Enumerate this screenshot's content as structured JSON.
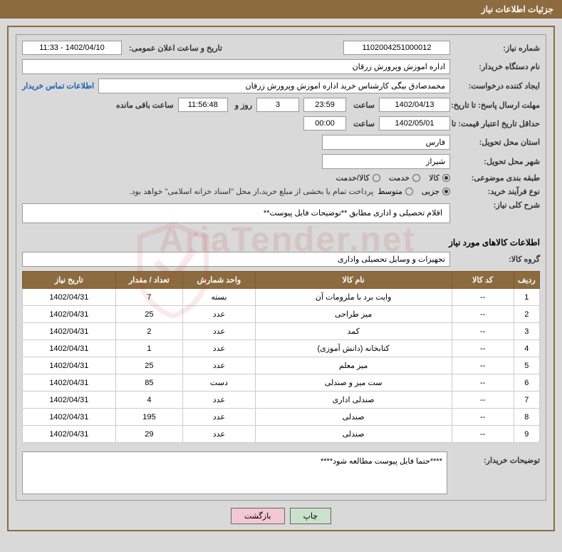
{
  "header": {
    "title": "جزئیات اطلاعات نیاز"
  },
  "fields": {
    "need_no_label": "شماره نیاز:",
    "need_no": "1102004251000012",
    "announce_label": "تاریخ و ساعت اعلان عمومی:",
    "announce_value": "1402/04/10 - 11:33",
    "buyer_label": "نام دستگاه خریدار:",
    "buyer_value": "اداره اموزش وپرورش زرقان",
    "requester_label": "ایجاد کننده درخواست:",
    "requester_value": "محمدصادق بیگی کارشناس خرید اداره اموزش وپرورش زرقان",
    "contact_link": "اطلاعات تماس خریدار",
    "deadline_label": "مهلت ارسال پاسخ: تا تاریخ:",
    "deadline_date": "1402/04/13",
    "time_label": "ساعت",
    "deadline_time": "23:59",
    "days_val": "3",
    "days_and": "روز و",
    "countdown": "11:56:48",
    "remaining": "ساعت باقی مانده",
    "validity_label": "حداقل تاریخ اعتبار قیمت: تا تاریخ:",
    "validity_date": "1402/05/01",
    "validity_time": "00:00",
    "province_label": "استان محل تحویل:",
    "province": "فارس",
    "city_label": "شهر محل تحویل:",
    "city": "شیراز",
    "category_label": "طبقه بندی موضوعی:",
    "cat_goods": "کالا",
    "cat_service": "خدمت",
    "cat_both": "کالا/خدمت",
    "process_label": "نوع فرآیند خرید:",
    "proc_minor": "جزیی",
    "proc_medium": "متوسط",
    "process_note": "پرداخت تمام یا بخشی از مبلغ خرید،از محل \"اسناد خزانه اسلامی\" خواهد بود.",
    "need_desc_label": "شرح کلی نیاز:",
    "need_desc": "اقلام تحصیلی و اداری مطابق **توضیحات فایل پیوست**",
    "goods_info_title": "اطلاعات کالاهای مورد نیاز",
    "group_label": "گروه کالا:",
    "group_value": "تجهیزات و وسایل تحصیلی واداری",
    "buyer_notes_label": "توضیحات خریدار:",
    "buyer_notes": "****حتما فایل پیوست مطالعه شود****"
  },
  "table": {
    "headers": [
      "ردیف",
      "کد کالا",
      "نام کالا",
      "واحد شمارش",
      "تعداد / مقدار",
      "تاریخ نیاز"
    ],
    "col_widths": [
      "5%",
      "12%",
      "38%",
      "14%",
      "13%",
      "18%"
    ],
    "rows": [
      [
        "1",
        "--",
        "وایت برد با ملزومات آن",
        "بسته",
        "7",
        "1402/04/31"
      ],
      [
        "2",
        "--",
        "میز طراحی",
        "عدد",
        "25",
        "1402/04/31"
      ],
      [
        "3",
        "--",
        "کمد",
        "عدد",
        "2",
        "1402/04/31"
      ],
      [
        "4",
        "--",
        "کتابخانه (دانش آموزی)",
        "عدد",
        "1",
        "1402/04/31"
      ],
      [
        "5",
        "--",
        "میز معلم",
        "عدد",
        "25",
        "1402/04/31"
      ],
      [
        "6",
        "--",
        "ست میز و صندلی",
        "دست",
        "85",
        "1402/04/31"
      ],
      [
        "7",
        "--",
        "صندلی اداری",
        "عدد",
        "4",
        "1402/04/31"
      ],
      [
        "8",
        "--",
        "صندلی",
        "عدد",
        "195",
        "1402/04/31"
      ],
      [
        "9",
        "--",
        "صندلی",
        "عدد",
        "29",
        "1402/04/31"
      ]
    ]
  },
  "buttons": {
    "print": "چاپ",
    "back": "بازگشت"
  },
  "colors": {
    "header_bg": "#8c6b3e",
    "page_bg": "#d9d9d9",
    "link": "#1a5fb4",
    "btn_print": "#c9e2c9",
    "btn_back": "#f2c9d2"
  }
}
